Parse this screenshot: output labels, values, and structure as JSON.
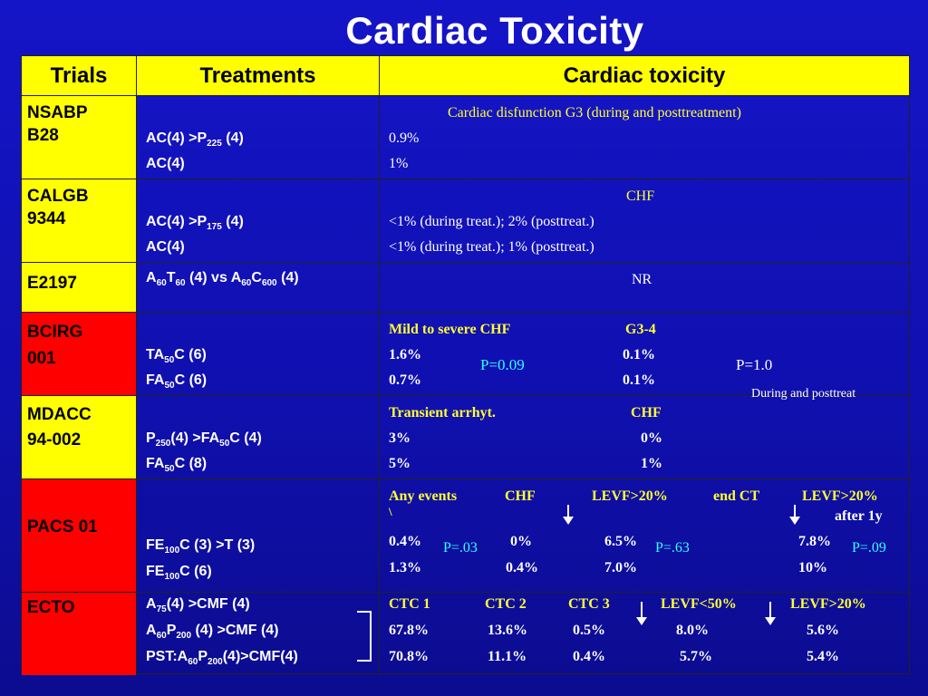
{
  "title": "Cardiac Toxicity",
  "header": {
    "trials": "Trials",
    "treatments": "Treatments",
    "toxicity": "Cardiac toxicity"
  },
  "nsabp": {
    "trial_l1": "NSABP",
    "trial_l2": "B28",
    "tx1_a": "AC(4) >P",
    "tx1_sub": "225",
    "tx1_b": " (4)",
    "tx2": "AC(4)",
    "heading": "Cardiac disfunction G3 (during and posttreatment)",
    "v1": "0.9%",
    "v2": "1%"
  },
  "calgb": {
    "trial_l1": "CALGB",
    "trial_l2": "9344",
    "tx1_a": "AC(4) >P",
    "tx1_sub": "175",
    "tx1_b": " (4)",
    "tx2": "AC(4)",
    "heading": "CHF",
    "v1": "<1% (during treat.); 2% (posttreat.)",
    "v2": "<1% (during treat.); 1% (posttreat.)"
  },
  "e2197": {
    "trial": "E2197",
    "tx": {
      "a": "A",
      "s1": "60",
      "b": "T",
      "s2": "60",
      "c": " (4) vs A",
      "s3": "60",
      "d": "C",
      "s4": "600",
      "e": " (4)"
    },
    "result": "NR"
  },
  "bcirg": {
    "trial_l1": "BCIRG",
    "trial_l2": "001",
    "tx1_a": "TA",
    "tx1_sub": "50",
    "tx1_b": "C (6)",
    "tx2_a": "FA",
    "tx2_sub": "50",
    "tx2_b": "C (6)",
    "h1": "Mild to severe CHF",
    "h2": "G3-4",
    "r1a": "1.6%",
    "r1b": "0.1%",
    "r2a": "0.7%",
    "r2b": "0.1%",
    "p1": "P=0.09",
    "p2": "P=1.0",
    "note": "During and posttreat"
  },
  "mdacc": {
    "trial_l1": "MDACC",
    "trial_l2": "94-002",
    "tx1_a": "P",
    "tx1_sub1": "250",
    "tx1_b": "(4) >FA",
    "tx1_sub2": "50",
    "tx1_c": "C (4)",
    "tx2_a": "FA",
    "tx2_sub": "50",
    "tx2_b": "C (8)",
    "h1": "Transient arrhyt.",
    "h2": "CHF",
    "r1a": "3%",
    "r1b": "0%",
    "r2a": "5%",
    "r2b": "1%"
  },
  "pacs": {
    "trial": "PACS 01",
    "tx1_a": "FE",
    "tx1_sub": "100",
    "tx1_b": "C (3) >T (3)",
    "tx2_a": "FE",
    "tx2_sub": "100",
    "tx2_b": "C (6)",
    "h_any": "Any events",
    "h_chf": "CHF",
    "h_levf": "LEVF>20%",
    "h_end": "end  CT",
    "h_levf2": "LEVF>20%",
    "backslash": "\\",
    "after": "after 1y",
    "r1": [
      "0.4%",
      "0%",
      "6.5%",
      "7.8%"
    ],
    "r2": [
      "1.3%",
      "0.4%",
      "7.0%",
      "10%"
    ],
    "p1": "P=.03",
    "p2": "P=.63",
    "p3": "P=.09"
  },
  "ecto": {
    "trial": "ECTO",
    "tx1_a": "A",
    "tx1_sub": "75",
    "tx1_b": "(4) >CMF (4)",
    "tx2_a": "A",
    "tx2_sub1": "60",
    "tx2_b": "P",
    "tx2_sub2": "200",
    "tx2_c": " (4) >CMF (4)",
    "tx3_a": "PST:A",
    "tx3_sub1": "60",
    "tx3_b": "P",
    "tx3_sub2": "200",
    "tx3_c": "(4)>CMF(4)",
    "h": [
      "CTC 1",
      "CTC 2",
      "CTC 3",
      "LEVF<50%",
      "LEVF>20%"
    ],
    "r1": [
      "67.8%",
      "13.6%",
      "0.5%",
      "8.0%",
      "5.6%"
    ],
    "r2": [
      "70.8%",
      "11.1%",
      "0.4%",
      "5.7%",
      "5.4%"
    ]
  }
}
